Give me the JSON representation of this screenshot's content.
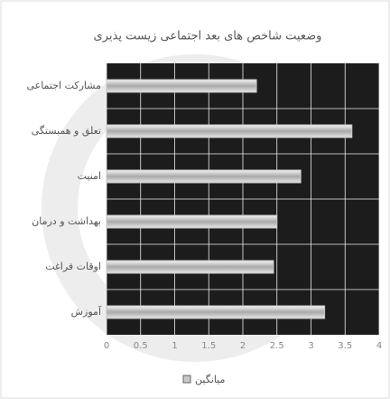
{
  "chart_data": {
    "type": "bar",
    "orientation": "horizontal",
    "title": "وضعیت شاخص های بعد اجتماعی زیست پذیری",
    "categories": [
      "مشارکت اجتماعی",
      "تعلق و همبستگی",
      "امنیت",
      "بهداشت و درمان",
      "اوقات فراغت",
      "آموزش"
    ],
    "series": [
      {
        "name": "میانگین",
        "color": "#c8c8c8",
        "values": [
          2.2,
          3.6,
          2.85,
          2.5,
          2.45,
          3.2
        ]
      }
    ],
    "xlim": [
      0,
      4
    ],
    "xticks": [
      0,
      0.5,
      1,
      1.5,
      2,
      2.5,
      3,
      3.5,
      4
    ],
    "grid": true
  }
}
